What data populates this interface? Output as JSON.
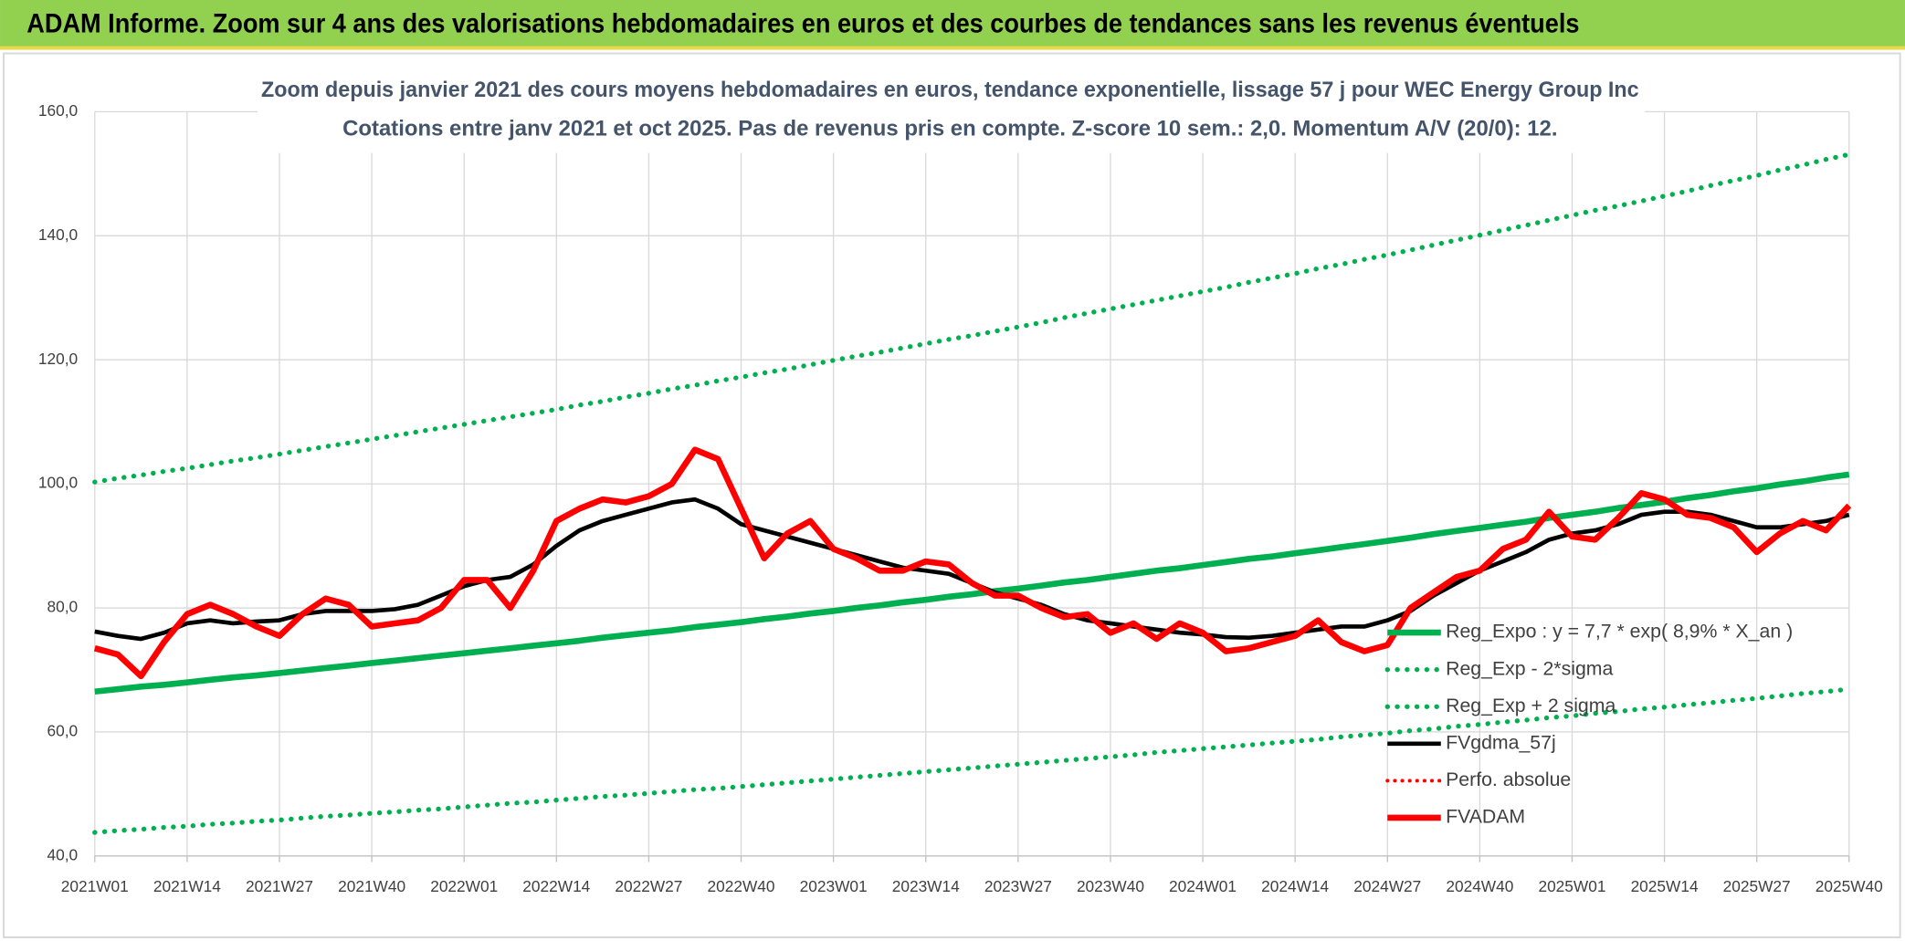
{
  "header": {
    "title": "ADAM Informe. Zoom sur 4 ans des valorisations hebdomadaires en euros et des courbes de tendances sans les revenus éventuels"
  },
  "chart_data": {
    "type": "line",
    "title": "Zoom depuis janvier 2021 des cours moyens hebdomadaires en euros, tendance exponentielle, lissage 57 j pour WEC Energy Group Inc",
    "subtitle": "Cotations entre janv 2021 et oct 2025. Pas de revenus pris en compte. Z-score 10 sem.: 2,0. Momentum A/V (20/0): 12.",
    "categories": [
      "2021W01",
      null,
      null,
      null,
      "2021W14",
      null,
      null,
      null,
      "2021W27",
      null,
      null,
      null,
      "2021W40",
      null,
      null,
      null,
      "2022W01",
      null,
      null,
      null,
      "2022W14",
      null,
      null,
      null,
      "2022W27",
      null,
      null,
      null,
      "2022W40",
      null,
      null,
      null,
      "2023W01",
      null,
      null,
      null,
      "2023W14",
      null,
      null,
      null,
      "2023W27",
      null,
      null,
      null,
      "2023W40",
      null,
      null,
      null,
      "2024W01",
      null,
      null,
      null,
      "2024W14",
      null,
      null,
      null,
      "2024W27",
      null,
      null,
      null,
      "2024W40",
      null,
      null,
      null,
      "2025W01",
      null,
      null,
      null,
      "2025W14",
      null,
      null,
      null,
      "2025W27",
      null,
      null,
      null,
      "2025W40"
    ],
    "ylim": [
      40,
      160
    ],
    "yticks": [
      {
        "value": 40,
        "label": "40,0"
      },
      {
        "value": 60,
        "label": "60,0"
      },
      {
        "value": 80,
        "label": "80,0"
      },
      {
        "value": 100,
        "label": "100,0"
      },
      {
        "value": 120,
        "label": "120,0"
      },
      {
        "value": 140,
        "label": "140,0"
      },
      {
        "value": 160,
        "label": "160,0"
      }
    ],
    "grid": true,
    "legend": "right",
    "series": [
      {
        "name": "Reg_Expo : y = 7,7 * exp( 8,9% *  X_an )",
        "color": "#00b050",
        "style": "solid",
        "width": 5,
        "values": [
          66.5,
          66.9,
          67.3,
          67.6,
          68.0,
          68.4,
          68.8,
          69.1,
          69.5,
          69.9,
          70.3,
          70.7,
          71.1,
          71.5,
          71.9,
          72.3,
          72.7,
          73.1,
          73.5,
          73.9,
          74.3,
          74.7,
          75.2,
          75.6,
          76.0,
          76.4,
          76.9,
          77.3,
          77.7,
          78.2,
          78.6,
          79.1,
          79.5,
          80.0,
          80.4,
          80.9,
          81.3,
          81.8,
          82.2,
          82.7,
          83.1,
          83.6,
          84.1,
          84.5,
          85.0,
          85.5,
          86.0,
          86.4,
          86.9,
          87.4,
          87.9,
          88.3,
          88.8,
          89.3,
          89.8,
          90.3,
          90.8,
          91.3,
          91.9,
          92.4,
          92.9,
          93.4,
          93.9,
          94.5,
          95.0,
          95.5,
          96.1,
          96.6,
          97.1,
          97.7,
          98.2,
          98.8,
          99.3,
          99.9,
          100.4,
          101.0,
          101.5
        ]
      },
      {
        "name": "Reg_Exp - 2*sigma",
        "color": "#00b050",
        "style": "dotted",
        "width": 4,
        "values": [
          43.8,
          44.1,
          44.3,
          44.6,
          44.8,
          45.1,
          45.3,
          45.6,
          45.8,
          46.1,
          46.4,
          46.6,
          46.9,
          47.1,
          47.4,
          47.6,
          47.9,
          48.2,
          48.5,
          48.7,
          49.0,
          49.3,
          49.6,
          49.8,
          50.1,
          50.4,
          50.7,
          50.9,
          51.2,
          51.5,
          51.8,
          52.1,
          52.4,
          52.7,
          53.0,
          53.3,
          53.6,
          53.9,
          54.2,
          54.5,
          54.8,
          55.1,
          55.4,
          55.7,
          56.0,
          56.3,
          56.7,
          57.0,
          57.3,
          57.6,
          57.9,
          58.2,
          58.5,
          58.8,
          59.2,
          59.5,
          59.8,
          60.2,
          60.5,
          60.9,
          61.2,
          61.6,
          61.9,
          62.3,
          62.6,
          63.0,
          63.3,
          63.7,
          64.0,
          64.4,
          64.7,
          65.1,
          65.4,
          65.8,
          66.2,
          66.5,
          66.9
        ]
      },
      {
        "name": "Reg_Exp + 2 sigma",
        "color": "#00b050",
        "style": "dotted",
        "width": 4,
        "values": [
          100.3,
          100.9,
          101.4,
          102.0,
          102.5,
          103.1,
          103.7,
          104.2,
          104.8,
          105.4,
          106.0,
          106.6,
          107.2,
          107.8,
          108.4,
          109.0,
          109.6,
          110.2,
          110.8,
          111.4,
          112.0,
          112.7,
          113.3,
          114.0,
          114.6,
          115.3,
          115.9,
          116.6,
          117.2,
          117.9,
          118.5,
          119.2,
          119.9,
          120.6,
          121.2,
          121.9,
          122.6,
          123.3,
          123.9,
          124.6,
          125.3,
          126.0,
          126.8,
          127.5,
          128.2,
          128.9,
          129.6,
          130.3,
          131.0,
          131.7,
          132.5,
          133.2,
          133.9,
          134.7,
          135.4,
          136.2,
          136.9,
          137.7,
          138.5,
          139.3,
          140.1,
          140.9,
          141.7,
          142.5,
          143.3,
          144.1,
          144.8,
          145.6,
          146.4,
          147.2,
          148.1,
          148.9,
          149.7,
          150.6,
          151.4,
          152.3,
          153.1
        ]
      },
      {
        "name": "FVgdma_57j",
        "color": "#000000",
        "style": "solid",
        "width": 3.5,
        "values": [
          76.2,
          75.5,
          75,
          76,
          77.5,
          78,
          77.5,
          77.8,
          78,
          79,
          79.5,
          79.5,
          79.5,
          79.8,
          80.5,
          82,
          83.5,
          84.5,
          85,
          87,
          90,
          92.5,
          94,
          95,
          96,
          97,
          97.5,
          96,
          93.5,
          92.5,
          91.5,
          90.5,
          89.5,
          88.5,
          87.5,
          86.5,
          86,
          85.5,
          84,
          82.5,
          81.5,
          80.5,
          79,
          78,
          77.5,
          77,
          76.5,
          76,
          75.7,
          75.3,
          75.2,
          75.5,
          76,
          76.5,
          77,
          77,
          78,
          79.5,
          82,
          84,
          86,
          87.5,
          89,
          91,
          92,
          92.5,
          93.5,
          95,
          95.5,
          95.5,
          95,
          94,
          93,
          93,
          93.5,
          94,
          95
        ]
      },
      {
        "name": "Perfo. absolue",
        "color": "#ff0000",
        "style": "dotted",
        "width": 3,
        "values": [
          null,
          null,
          null,
          null,
          null,
          null,
          null,
          null,
          null,
          null,
          null,
          null,
          null,
          null,
          null,
          null,
          null,
          null,
          null,
          null,
          null,
          null,
          null,
          null,
          null,
          null,
          null,
          null,
          null,
          null,
          null,
          null,
          null,
          null,
          null,
          null,
          null,
          null,
          null,
          null,
          null,
          null,
          null,
          null,
          null,
          null,
          null,
          null,
          null,
          null,
          null,
          null,
          null,
          null,
          null,
          null,
          null,
          null,
          null,
          null,
          null,
          null,
          null,
          null,
          null,
          null,
          null,
          null,
          null,
          null,
          null,
          null,
          null,
          null,
          null,
          null,
          null
        ]
      },
      {
        "name": "FVADAM",
        "color": "#ff0000",
        "style": "solid",
        "width": 5,
        "values": [
          73.5,
          72.5,
          69,
          74.5,
          79,
          80.5,
          79,
          77,
          75.5,
          79,
          81.5,
          80.5,
          77,
          77.5,
          78,
          80,
          84.5,
          84.5,
          80,
          86,
          94,
          96,
          97.5,
          97,
          98,
          100,
          105.5,
          104,
          96,
          88,
          92,
          94,
          89.5,
          88,
          86,
          86,
          87.5,
          87,
          84,
          82,
          82,
          80,
          78.5,
          79,
          76,
          77.5,
          75,
          77.5,
          76,
          73,
          73.5,
          74.5,
          75.5,
          78,
          74.5,
          73,
          74,
          80,
          82.5,
          85,
          86,
          89.5,
          91,
          95.5,
          91.5,
          91,
          94.5,
          98.5,
          97.5,
          95,
          94.5,
          93,
          89,
          92,
          94,
          92.5,
          96.5
        ]
      }
    ]
  }
}
